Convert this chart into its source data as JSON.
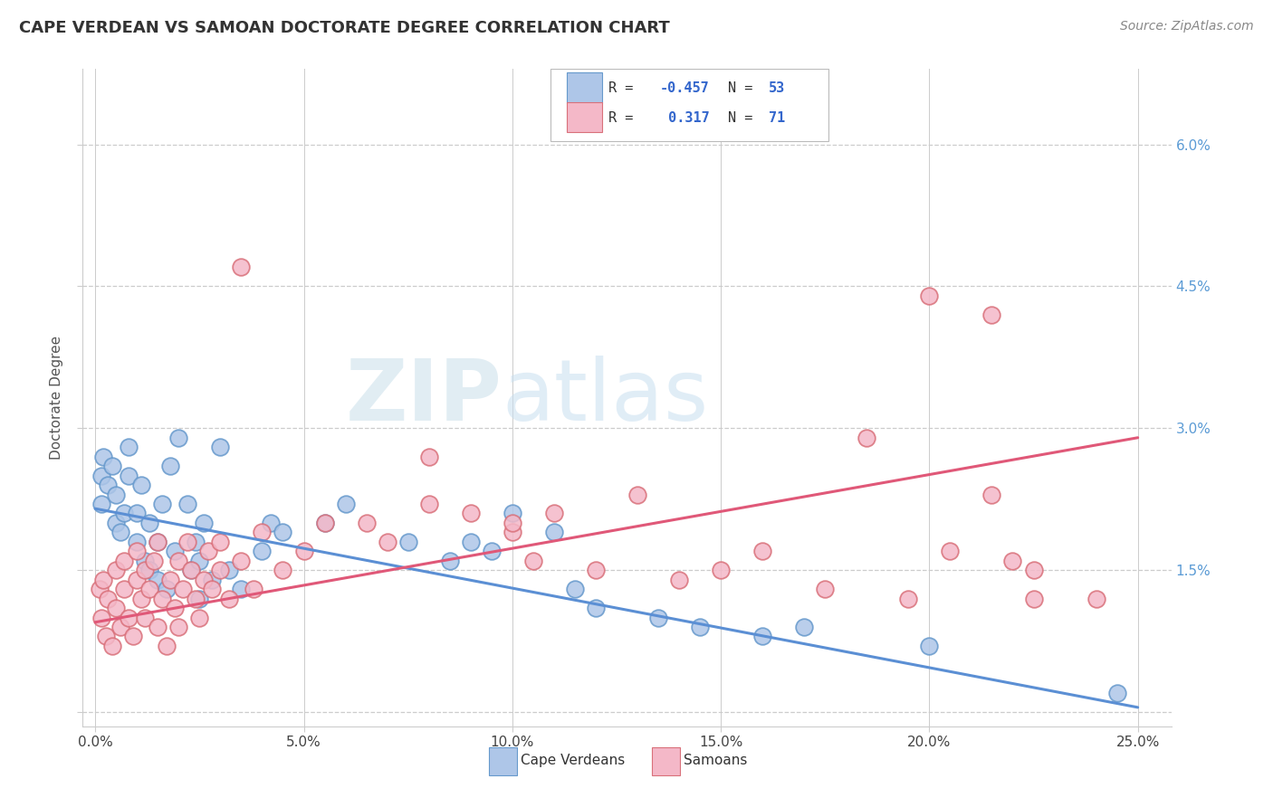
{
  "title": "CAPE VERDEAN VS SAMOAN DOCTORATE DEGREE CORRELATION CHART",
  "source_text": "Source: ZipAtlas.com",
  "ylabel_label": "Doctorate Degree",
  "legend_label1": "Cape Verdeans",
  "legend_label2": "Samoans",
  "color_blue_fill": "#aec6e8",
  "color_blue_edge": "#6699cc",
  "color_pink_fill": "#f4b8c8",
  "color_pink_edge": "#d9707a",
  "color_blue_line": "#5b8fd4",
  "color_pink_line": "#e05878",
  "grid_color": "#cccccc",
  "xlim": [
    0,
    25
  ],
  "ylim": [
    0,
    6.5
  ],
  "xticks": [
    0,
    5,
    10,
    15,
    20,
    25
  ],
  "yticks": [
    0,
    1.5,
    3.0,
    4.5,
    6.0
  ],
  "xticklabels": [
    "0.0%",
    "5.0%",
    "10.0%",
    "15.0%",
    "20.0%",
    "25.0%"
  ],
  "yticklabels": [
    "",
    "1.5%",
    "3.0%",
    "4.5%",
    "6.0%"
  ],
  "cv_x": [
    0.15,
    0.15,
    0.2,
    0.3,
    0.4,
    0.5,
    0.5,
    0.6,
    0.7,
    0.8,
    0.8,
    1.0,
    1.0,
    1.1,
    1.2,
    1.3,
    1.3,
    1.5,
    1.5,
    1.6,
    1.7,
    1.8,
    1.9,
    2.0,
    2.2,
    2.3,
    2.4,
    2.5,
    2.5,
    2.6,
    2.8,
    3.0,
    3.2,
    3.5,
    4.0,
    4.2,
    4.5,
    5.5,
    6.0,
    7.5,
    8.5,
    9.0,
    9.5,
    10.0,
    11.0,
    11.5,
    12.0,
    13.5,
    14.5,
    16.0,
    17.0,
    20.0,
    24.5
  ],
  "cv_y": [
    2.2,
    2.5,
    2.7,
    2.4,
    2.6,
    2.0,
    2.3,
    1.9,
    2.1,
    2.5,
    2.8,
    1.8,
    2.1,
    2.4,
    1.6,
    1.5,
    2.0,
    1.4,
    1.8,
    2.2,
    1.3,
    2.6,
    1.7,
    2.9,
    2.2,
    1.5,
    1.8,
    1.2,
    1.6,
    2.0,
    1.4,
    2.8,
    1.5,
    1.3,
    1.7,
    2.0,
    1.9,
    2.0,
    2.2,
    1.8,
    1.6,
    1.8,
    1.7,
    2.1,
    1.9,
    1.3,
    1.1,
    1.0,
    0.9,
    0.8,
    0.9,
    0.7,
    0.2
  ],
  "sam_x": [
    0.1,
    0.15,
    0.2,
    0.25,
    0.3,
    0.4,
    0.5,
    0.5,
    0.6,
    0.7,
    0.7,
    0.8,
    0.9,
    1.0,
    1.0,
    1.1,
    1.2,
    1.2,
    1.3,
    1.4,
    1.5,
    1.5,
    1.6,
    1.7,
    1.8,
    1.9,
    2.0,
    2.0,
    2.1,
    2.2,
    2.3,
    2.4,
    2.5,
    2.6,
    2.7,
    2.8,
    3.0,
    3.0,
    3.2,
    3.5,
    3.8,
    4.0,
    4.5,
    5.0,
    5.5,
    6.5,
    7.0,
    8.0,
    9.0,
    10.0,
    10.5,
    11.0,
    12.0,
    13.0,
    14.0,
    16.0,
    17.5,
    18.5,
    19.5,
    20.5,
    21.5,
    22.5,
    22.5,
    24.0,
    3.5,
    8.0,
    20.0,
    21.5,
    22.0,
    10.0,
    15.0
  ],
  "sam_y": [
    1.3,
    1.0,
    1.4,
    0.8,
    1.2,
    0.7,
    1.1,
    1.5,
    0.9,
    1.3,
    1.6,
    1.0,
    0.8,
    1.4,
    1.7,
    1.2,
    1.0,
    1.5,
    1.3,
    1.6,
    0.9,
    1.8,
    1.2,
    0.7,
    1.4,
    1.1,
    1.6,
    0.9,
    1.3,
    1.8,
    1.5,
    1.2,
    1.0,
    1.4,
    1.7,
    1.3,
    1.5,
    1.8,
    1.2,
    1.6,
    1.3,
    1.9,
    1.5,
    1.7,
    2.0,
    2.0,
    1.8,
    2.2,
    2.1,
    1.9,
    1.6,
    2.1,
    1.5,
    2.3,
    1.4,
    1.7,
    1.3,
    2.9,
    1.2,
    1.7,
    2.3,
    1.2,
    1.5,
    1.2,
    4.7,
    2.7,
    4.4,
    4.2,
    1.6,
    2.0,
    1.5
  ],
  "cv_line_x": [
    0,
    25
  ],
  "cv_line_y": [
    2.15,
    0.05
  ],
  "sam_line_x": [
    0,
    25
  ],
  "sam_line_y": [
    0.95,
    2.9
  ]
}
